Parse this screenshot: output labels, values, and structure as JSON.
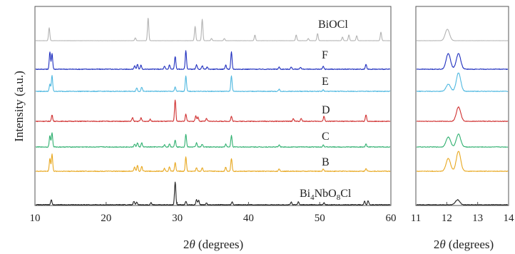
{
  "chart_data": [
    {
      "type": "line",
      "panel": "main",
      "xlabel": "2θ (degrees)",
      "xlabel_parts": {
        "italic": "θ",
        "prefix": "2",
        "suffix": " (degrees)"
      },
      "ylabel": "Intensity (a.u.)",
      "xlim": [
        10,
        60
      ],
      "xticks": [
        "10",
        "20",
        "30",
        "40",
        "50",
        "60"
      ],
      "grid": false,
      "series": [
        {
          "name": "BiOCl",
          "color": "#b3b3b3",
          "peaks": [
            [
              12.0,
              18
            ],
            [
              24.1,
              4
            ],
            [
              25.9,
              32
            ],
            [
              32.5,
              20
            ],
            [
              33.5,
              30
            ],
            [
              34.8,
              3
            ],
            [
              36.6,
              3
            ],
            [
              40.9,
              8
            ],
            [
              46.7,
              8
            ],
            [
              48.4,
              3
            ],
            [
              49.7,
              10
            ],
            [
              53.2,
              5
            ],
            [
              54.1,
              8
            ],
            [
              55.2,
              7
            ],
            [
              58.6,
              12
            ]
          ]
        },
        {
          "name": "F",
          "color": "#1f2fbf",
          "peaks": [
            [
              12.1,
              24
            ],
            [
              12.4,
              22
            ],
            [
              24.0,
              5
            ],
            [
              24.4,
              7
            ],
            [
              24.9,
              6
            ],
            [
              28.2,
              4
            ],
            [
              28.9,
              6
            ],
            [
              29.7,
              18
            ],
            [
              31.2,
              26
            ],
            [
              32.7,
              6
            ],
            [
              33.5,
              5
            ],
            [
              34.2,
              3
            ],
            [
              36.8,
              6
            ],
            [
              37.6,
              24
            ],
            [
              44.3,
              3
            ],
            [
              46.0,
              3
            ],
            [
              47.3,
              3
            ],
            [
              50.5,
              4
            ],
            [
              56.5,
              7
            ]
          ]
        },
        {
          "name": "E",
          "color": "#4fb8e0",
          "peaks": [
            [
              12.1,
              10
            ],
            [
              12.4,
              22
            ],
            [
              24.3,
              5
            ],
            [
              25.0,
              6
            ],
            [
              29.7,
              6
            ],
            [
              31.2,
              22
            ],
            [
              37.6,
              22
            ],
            [
              44.3,
              3
            ],
            [
              50.5,
              2
            ]
          ]
        },
        {
          "name": "D",
          "color": "#d03030",
          "peaks": [
            [
              12.4,
              9
            ],
            [
              23.7,
              5
            ],
            [
              24.9,
              5
            ],
            [
              26.2,
              3
            ],
            [
              29.7,
              30
            ],
            [
              31.2,
              10
            ],
            [
              32.6,
              8
            ],
            [
              32.9,
              6
            ],
            [
              34.1,
              4
            ],
            [
              37.6,
              7
            ],
            [
              46.3,
              4
            ],
            [
              47.4,
              4
            ],
            [
              50.6,
              7
            ],
            [
              56.5,
              9
            ]
          ]
        },
        {
          "name": "C",
          "color": "#30b070",
          "peaks": [
            [
              12.1,
              16
            ],
            [
              12.4,
              20
            ],
            [
              24.0,
              4
            ],
            [
              24.4,
              6
            ],
            [
              25.0,
              6
            ],
            [
              28.2,
              3
            ],
            [
              28.9,
              4
            ],
            [
              29.7,
              10
            ],
            [
              31.2,
              18
            ],
            [
              32.7,
              6
            ],
            [
              33.5,
              4
            ],
            [
              36.8,
              4
            ],
            [
              37.6,
              16
            ],
            [
              44.3,
              3
            ],
            [
              50.5,
              3
            ],
            [
              56.5,
              4
            ]
          ]
        },
        {
          "name": "B",
          "color": "#e8a820",
          "peaks": [
            [
              12.1,
              18
            ],
            [
              12.4,
              24
            ],
            [
              24.0,
              6
            ],
            [
              24.4,
              8
            ],
            [
              25.0,
              7
            ],
            [
              28.2,
              4
            ],
            [
              28.9,
              6
            ],
            [
              29.7,
              12
            ],
            [
              31.2,
              20
            ],
            [
              32.7,
              5
            ],
            [
              33.5,
              5
            ],
            [
              36.8,
              6
            ],
            [
              37.6,
              18
            ],
            [
              44.3,
              3
            ],
            [
              50.5,
              3
            ],
            [
              56.5,
              4
            ]
          ]
        },
        {
          "name": "Bi4NbO8Cl",
          "name_parts": [
            "Bi",
            "4",
            "NbO",
            "8",
            "Cl"
          ],
          "color": "#222222",
          "peaks": [
            [
              12.3,
              7
            ],
            [
              23.9,
              5
            ],
            [
              24.3,
              4
            ],
            [
              26.3,
              3
            ],
            [
              29.7,
              32
            ],
            [
              31.2,
              5
            ],
            [
              32.7,
              7
            ],
            [
              33.0,
              6
            ],
            [
              34.1,
              3
            ],
            [
              37.7,
              4
            ],
            [
              46.0,
              4
            ],
            [
              47.0,
              4
            ],
            [
              50.6,
              3
            ],
            [
              56.3,
              5
            ],
            [
              56.8,
              6
            ]
          ]
        }
      ]
    },
    {
      "type": "line",
      "panel": "inset",
      "xlabel": "2θ (degrees)",
      "xlabel_parts": {
        "italic": "θ",
        "prefix": "2",
        "suffix": " (degrees)"
      },
      "xlim": [
        11,
        14
      ],
      "xticks": [
        "11",
        "12",
        "13",
        "14"
      ],
      "grid": false,
      "series": [
        {
          "name": "BiOCl",
          "color": "#b3b3b3",
          "peaks": [
            [
              12.02,
              16
            ]
          ]
        },
        {
          "name": "F",
          "color": "#1f2fbf",
          "peaks": [
            [
              12.05,
              22
            ],
            [
              12.38,
              22
            ]
          ]
        },
        {
          "name": "E",
          "color": "#4fb8e0",
          "peaks": [
            [
              12.05,
              10
            ],
            [
              12.38,
              26
            ]
          ]
        },
        {
          "name": "D",
          "color": "#d03030",
          "peaks": [
            [
              12.38,
              20
            ]
          ]
        },
        {
          "name": "C",
          "color": "#30b070",
          "peaks": [
            [
              12.05,
              14
            ],
            [
              12.38,
              18
            ]
          ]
        },
        {
          "name": "B",
          "color": "#e8a820",
          "peaks": [
            [
              12.05,
              18
            ],
            [
              12.38,
              28
            ]
          ]
        },
        {
          "name": "Bi4NbO8Cl",
          "color": "#222222",
          "peaks": [
            [
              12.35,
              7
            ]
          ]
        }
      ]
    }
  ]
}
